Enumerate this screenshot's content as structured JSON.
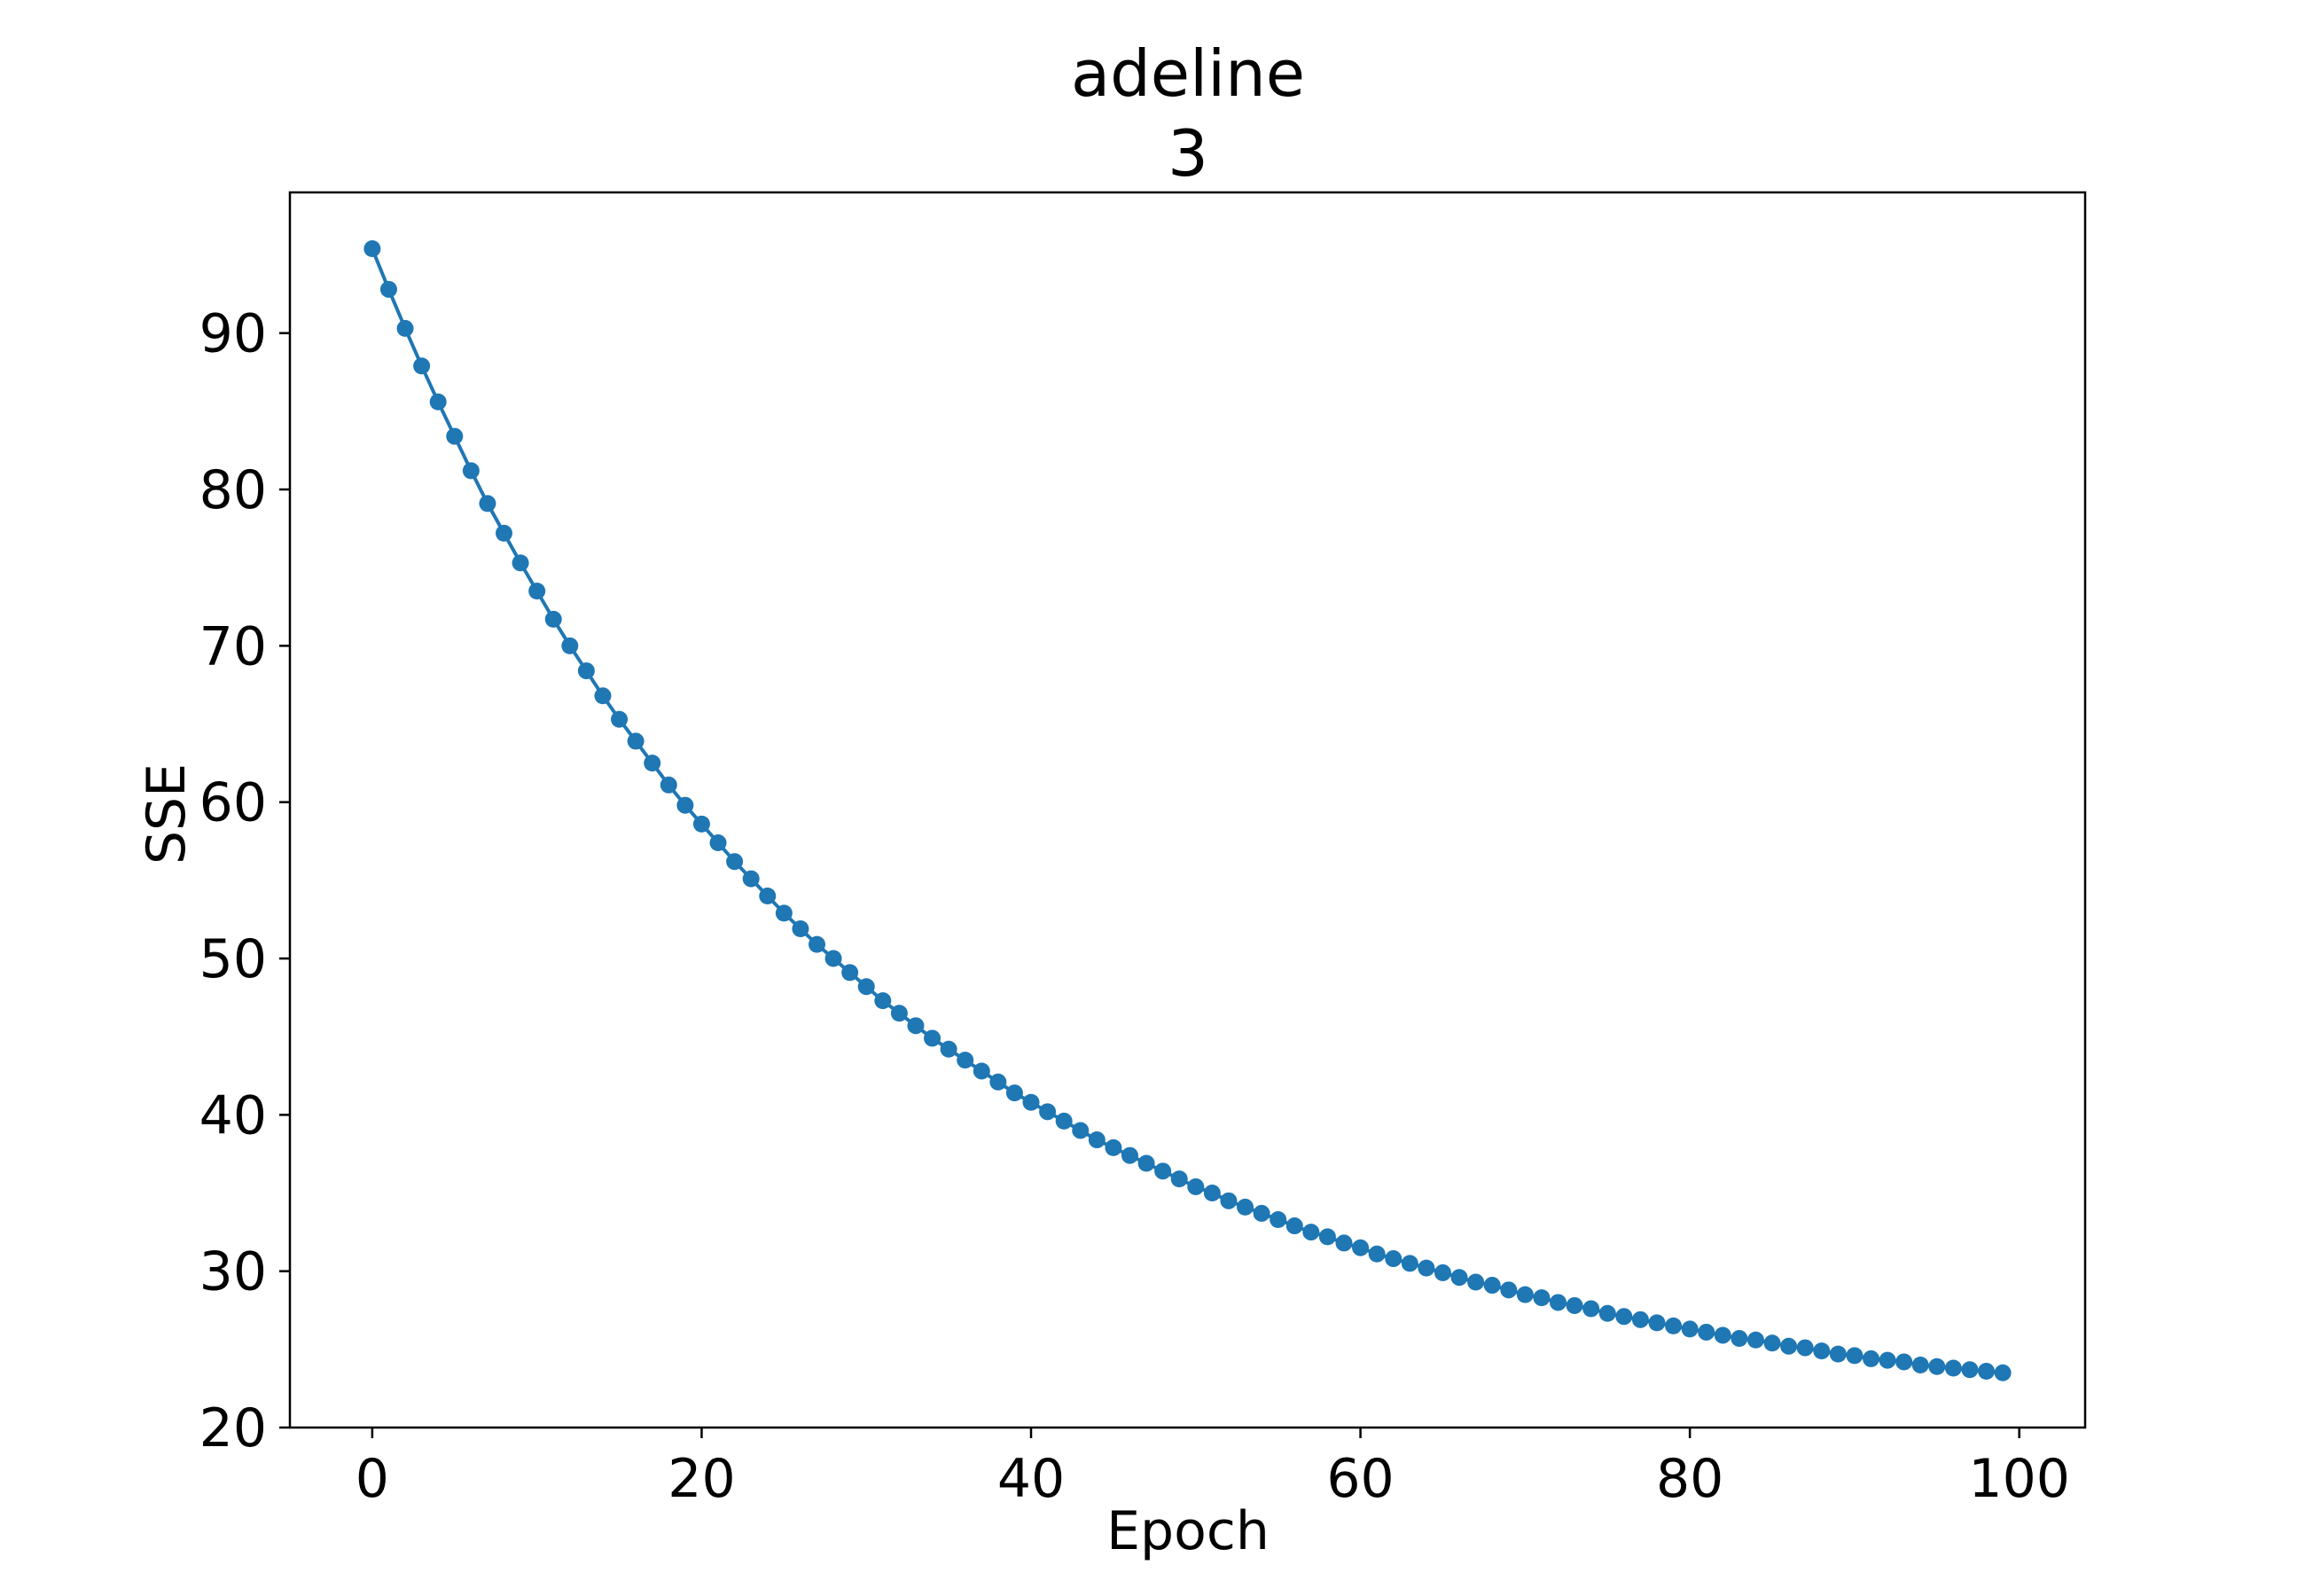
{
  "chart_data": {
    "type": "line",
    "title": "adeline",
    "subtitle": "3",
    "xlabel": "Epoch",
    "ylabel": "SSE",
    "xlim": [
      -5,
      104
    ],
    "ylim": [
      20,
      99
    ],
    "xticks": [
      0,
      20,
      40,
      60,
      80,
      100
    ],
    "yticks": [
      20,
      30,
      40,
      50,
      60,
      70,
      80,
      90
    ],
    "grid": false,
    "series": [
      {
        "color": "#1f77b4",
        "marker": "circle",
        "x_start": 0,
        "x_step": 1,
        "values": [
          95.4,
          92.8,
          90.3,
          87.9,
          85.6,
          83.4,
          81.2,
          79.1,
          77.2,
          75.3,
          73.5,
          71.7,
          70.0,
          68.4,
          66.8,
          65.3,
          63.9,
          62.5,
          61.1,
          59.8,
          58.6,
          57.4,
          56.2,
          55.1,
          54.0,
          52.9,
          51.9,
          50.9,
          50.0,
          49.1,
          48.2,
          47.3,
          46.5,
          45.7,
          44.9,
          44.2,
          43.5,
          42.8,
          42.1,
          41.4,
          40.8,
          40.2,
          39.6,
          39.0,
          38.4,
          37.9,
          37.4,
          36.9,
          36.4,
          35.9,
          35.4,
          35.0,
          34.5,
          34.1,
          33.7,
          33.3,
          32.9,
          32.5,
          32.2,
          31.8,
          31.5,
          31.1,
          30.8,
          30.5,
          30.2,
          29.9,
          29.6,
          29.3,
          29.1,
          28.8,
          28.5,
          28.3,
          28.0,
          27.8,
          27.6,
          27.3,
          27.1,
          26.9,
          26.7,
          26.5,
          26.3,
          26.1,
          25.9,
          25.7,
          25.6,
          25.4,
          25.2,
          25.1,
          24.9,
          24.7,
          24.6,
          24.4,
          24.3,
          24.2,
          24.0,
          23.9,
          23.8,
          23.7,
          23.6,
          23.5
        ]
      }
    ]
  }
}
